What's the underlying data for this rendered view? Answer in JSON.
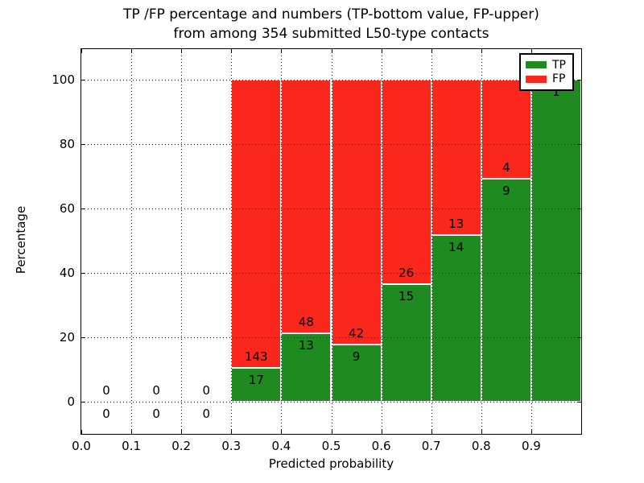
{
  "title": {
    "line1": "TP /FP percentage and numbers (TP-bottom value, FP-upper)",
    "line2": "from among 354 submitted L50-type contacts"
  },
  "axes": {
    "xlabel": "Predicted probability",
    "ylabel": "Percentage",
    "xticks": [
      {
        "label": "0.0",
        "value": 0.0
      },
      {
        "label": "0.1",
        "value": 0.1
      },
      {
        "label": "0.2",
        "value": 0.2
      },
      {
        "label": "0.3",
        "value": 0.3
      },
      {
        "label": "0.4",
        "value": 0.4
      },
      {
        "label": "0.5",
        "value": 0.5
      },
      {
        "label": "0.6",
        "value": 0.6
      },
      {
        "label": "0.7",
        "value": 0.7
      },
      {
        "label": "0.8",
        "value": 0.8
      },
      {
        "label": "0.9",
        "value": 0.9
      }
    ],
    "yticks": [
      {
        "label": "0",
        "value": 0
      },
      {
        "label": "20",
        "value": 20
      },
      {
        "label": "40",
        "value": 40
      },
      {
        "label": "60",
        "value": 60
      },
      {
        "label": "80",
        "value": 80
      },
      {
        "label": "100",
        "value": 100
      }
    ]
  },
  "legend": {
    "items": [
      {
        "label": "TP",
        "color": "#1f8a1f"
      },
      {
        "label": "FP",
        "color": "#fa281c"
      }
    ]
  },
  "colors": {
    "tp": "#1f8a1f",
    "fp": "#fa281c",
    "grid": "#000000",
    "bar_edge": "#ffffff",
    "text": "#000000",
    "background": "#ffffff"
  },
  "chart_data": {
    "type": "bar",
    "stacked": true,
    "normalized": "each non-empty bin stacks to 100%, labels show raw counts (TP bottom, FP upper)",
    "title": "TP /FP percentage and numbers (TP-bottom value, FP-upper) from among 354 submitted L50-type contacts",
    "xlabel": "Predicted probability",
    "ylabel": "Percentage",
    "xlim": [
      0.0,
      1.0
    ],
    "ylim": [
      -10,
      109.5
    ],
    "grid": true,
    "legend_position": "upper right",
    "total_contacts": 354,
    "series": [
      {
        "name": "TP",
        "color": "#1f8a1f"
      },
      {
        "name": "FP",
        "color": "#fa281c"
      }
    ],
    "bins": [
      {
        "range": [
          0.0,
          0.1
        ],
        "tp": 0,
        "fp": 0,
        "tp_pct": 0,
        "fp_pct": 0
      },
      {
        "range": [
          0.1,
          0.2
        ],
        "tp": 0,
        "fp": 0,
        "tp_pct": 0,
        "fp_pct": 0
      },
      {
        "range": [
          0.2,
          0.3
        ],
        "tp": 0,
        "fp": 0,
        "tp_pct": 0,
        "fp_pct": 0
      },
      {
        "range": [
          0.3,
          0.4
        ],
        "tp": 17,
        "fp": 143,
        "tp_pct": 10.6,
        "fp_pct": 89.4
      },
      {
        "range": [
          0.4,
          0.5
        ],
        "tp": 13,
        "fp": 48,
        "tp_pct": 21.3,
        "fp_pct": 78.7
      },
      {
        "range": [
          0.5,
          0.6
        ],
        "tp": 9,
        "fp": 42,
        "tp_pct": 17.6,
        "fp_pct": 82.4
      },
      {
        "range": [
          0.6,
          0.7
        ],
        "tp": 15,
        "fp": 26,
        "tp_pct": 36.6,
        "fp_pct": 63.4
      },
      {
        "range": [
          0.7,
          0.8
        ],
        "tp": 14,
        "fp": 13,
        "tp_pct": 51.9,
        "fp_pct": 48.1
      },
      {
        "range": [
          0.8,
          0.9
        ],
        "tp": 9,
        "fp": 4,
        "tp_pct": 69.2,
        "fp_pct": 30.8
      },
      {
        "range": [
          0.9,
          1.0
        ],
        "tp": 1,
        "fp": 0,
        "tp_pct": 100,
        "fp_pct": 0
      }
    ]
  }
}
